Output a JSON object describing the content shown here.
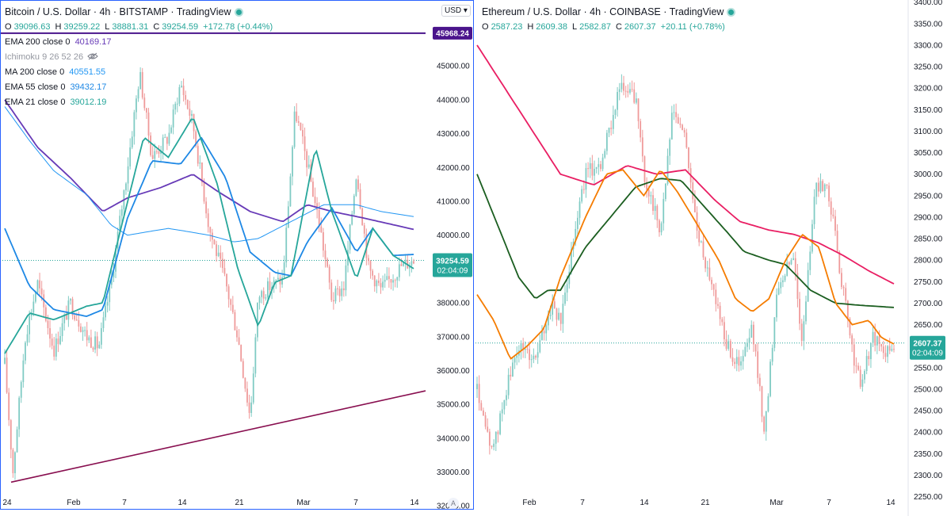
{
  "btc": {
    "title": "Bitcoin / U.S. Dollar · 4h · BITSTAMP · TradingView",
    "ohlc": [
      {
        "k": "O",
        "v": "39096.63"
      },
      {
        "k": "H",
        "v": "39259.22"
      },
      {
        "k": "L",
        "v": "38881.31"
      },
      {
        "k": "C",
        "v": "39254.59"
      },
      {
        "k": "",
        "v": "+172.78 (+0.44%)"
      }
    ],
    "currency": "USD",
    "indicators": [
      {
        "name": "EMA 200 close 0",
        "value": "40169.17",
        "color": "#673ab7"
      },
      {
        "name": "Ichimoku 9 26 52 26",
        "value": "",
        "color": "#9598a1"
      },
      {
        "name": "MA 200 close 0",
        "value": "40551.55",
        "color": "#2196f3"
      },
      {
        "name": "EMA 55 close 0",
        "value": "39432.17",
        "color": "#1e88e5"
      },
      {
        "name": "EMA 21 close 0",
        "value": "39012.19",
        "color": "#26a69a"
      }
    ],
    "price_tag": "39254.59",
    "countdown": "02:04:09",
    "level_tag": "45968.24",
    "axis_mode": "A",
    "chart_data": {
      "type": "candlestick",
      "y_ticks": [
        32000,
        33000,
        34000,
        35000,
        36000,
        37000,
        38000,
        39000,
        40000,
        41000,
        42000,
        43000,
        44000,
        45000
      ],
      "ylim": [
        31700,
        46950
      ],
      "x_ticks": [
        "24",
        "Feb",
        "7",
        "14",
        "21",
        "Mar",
        "7",
        "14"
      ],
      "horizontal_level": 45968.24,
      "last_price": 39254.59,
      "trendline": {
        "from": [
          0,
          32700
        ],
        "to": [
          1,
          35400
        ]
      },
      "price_path": [
        [
          0,
          36200
        ],
        [
          0.02,
          33000
        ],
        [
          0.05,
          37000
        ],
        [
          0.08,
          38600
        ],
        [
          0.12,
          36600
        ],
        [
          0.16,
          38000
        ],
        [
          0.2,
          37000
        ],
        [
          0.23,
          36700
        ],
        [
          0.26,
          38600
        ],
        [
          0.3,
          42000
        ],
        [
          0.33,
          44800
        ],
        [
          0.36,
          42300
        ],
        [
          0.4,
          42900
        ],
        [
          0.43,
          44500
        ],
        [
          0.46,
          43300
        ],
        [
          0.5,
          40200
        ],
        [
          0.54,
          38600
        ],
        [
          0.57,
          37000
        ],
        [
          0.6,
          34600
        ],
        [
          0.62,
          38200
        ],
        [
          0.65,
          38500
        ],
        [
          0.68,
          38700
        ],
        [
          0.71,
          43700
        ],
        [
          0.74,
          42100
        ],
        [
          0.77,
          40300
        ],
        [
          0.8,
          38100
        ],
        [
          0.83,
          38500
        ],
        [
          0.86,
          41900
        ],
        [
          0.89,
          39000
        ],
        [
          0.92,
          38400
        ],
        [
          0.95,
          38800
        ],
        [
          0.97,
          39100
        ],
        [
          1,
          39255
        ]
      ],
      "series": [
        {
          "name": "EMA 200",
          "color": "#673ab7",
          "points": [
            [
              0,
              44000
            ],
            [
              0.08,
              42600
            ],
            [
              0.16,
              41700
            ],
            [
              0.24,
              40700
            ],
            [
              0.3,
              41100
            ],
            [
              0.38,
              41400
            ],
            [
              0.46,
              41800
            ],
            [
              0.52,
              41300
            ],
            [
              0.6,
              40700
            ],
            [
              0.68,
              40400
            ],
            [
              0.74,
              40900
            ],
            [
              0.8,
              40700
            ],
            [
              0.88,
              40500
            ],
            [
              1,
              40170
            ]
          ]
        },
        {
          "name": "MA 200",
          "color": "#2196f3",
          "points": [
            [
              0,
              43800
            ],
            [
              0.06,
              42800
            ],
            [
              0.12,
              41900
            ],
            [
              0.2,
              41200
            ],
            [
              0.26,
              40300
            ],
            [
              0.3,
              40000
            ],
            [
              0.4,
              40200
            ],
            [
              0.5,
              40000
            ],
            [
              0.56,
              39800
            ],
            [
              0.62,
              39900
            ],
            [
              0.7,
              40400
            ],
            [
              0.78,
              40900
            ],
            [
              0.86,
              40900
            ],
            [
              0.92,
              40700
            ],
            [
              1,
              40550
            ]
          ]
        },
        {
          "name": "EMA 55",
          "color": "#1e88e5",
          "points": [
            [
              0,
              40200
            ],
            [
              0.06,
              38500
            ],
            [
              0.12,
              37800
            ],
            [
              0.2,
              37600
            ],
            [
              0.24,
              37800
            ],
            [
              0.3,
              40500
            ],
            [
              0.36,
              42200
            ],
            [
              0.43,
              42100
            ],
            [
              0.48,
              42900
            ],
            [
              0.54,
              41700
            ],
            [
              0.6,
              39500
            ],
            [
              0.66,
              38900
            ],
            [
              0.7,
              38800
            ],
            [
              0.74,
              39800
            ],
            [
              0.8,
              40800
            ],
            [
              0.86,
              39500
            ],
            [
              0.9,
              40200
            ],
            [
              0.95,
              39400
            ],
            [
              1,
              39430
            ]
          ]
        },
        {
          "name": "EMA 21",
          "color": "#26a69a",
          "points": [
            [
              0,
              36500
            ],
            [
              0.06,
              37700
            ],
            [
              0.12,
              37500
            ],
            [
              0.2,
              37900
            ],
            [
              0.24,
              38000
            ],
            [
              0.28,
              40000
            ],
            [
              0.34,
              42900
            ],
            [
              0.4,
              42300
            ],
            [
              0.46,
              43500
            ],
            [
              0.52,
              41500
            ],
            [
              0.57,
              39000
            ],
            [
              0.62,
              37300
            ],
            [
              0.66,
              38600
            ],
            [
              0.7,
              38800
            ],
            [
              0.76,
              42600
            ],
            [
              0.8,
              40700
            ],
            [
              0.86,
              38700
            ],
            [
              0.9,
              40200
            ],
            [
              0.95,
              39400
            ],
            [
              1,
              39010
            ]
          ]
        }
      ]
    }
  },
  "eth": {
    "title": "Ethereum / U.S. Dollar · 4h · COINBASE · TradingView",
    "ohlc": [
      {
        "k": "O",
        "v": "2587.23"
      },
      {
        "k": "H",
        "v": "2609.38"
      },
      {
        "k": "L",
        "v": "2582.87"
      },
      {
        "k": "C",
        "v": "2607.37"
      },
      {
        "k": "",
        "v": "+20.11 (+0.78%)"
      }
    ],
    "price_tag": "2607.37",
    "countdown": "02:04:09",
    "chart_data": {
      "type": "candlestick",
      "y_ticks": [
        2250,
        2300,
        2350,
        2400,
        2450,
        2500,
        2550,
        2600,
        2650,
        2700,
        2750,
        2800,
        2850,
        2900,
        2950,
        3000,
        3050,
        3100,
        3150,
        3200,
        3250,
        3300,
        3350,
        3400
      ],
      "ylim": [
        2205,
        3405
      ],
      "x_ticks": [
        "Feb",
        "7",
        "14",
        "21",
        "Mar",
        "7",
        "14"
      ],
      "last_price": 2607.37,
      "price_path": [
        [
          0,
          2500
        ],
        [
          0.02,
          2400
        ],
        [
          0.04,
          2360
        ],
        [
          0.07,
          2500
        ],
        [
          0.1,
          2600
        ],
        [
          0.14,
          2570
        ],
        [
          0.18,
          2700
        ],
        [
          0.2,
          2650
        ],
        [
          0.23,
          2850
        ],
        [
          0.26,
          3000
        ],
        [
          0.3,
          3030
        ],
        [
          0.34,
          3200
        ],
        [
          0.38,
          3180
        ],
        [
          0.4,
          3000
        ],
        [
          0.44,
          2870
        ],
        [
          0.47,
          3150
        ],
        [
          0.5,
          3080
        ],
        [
          0.53,
          2850
        ],
        [
          0.56,
          2760
        ],
        [
          0.6,
          2600
        ],
        [
          0.63,
          2550
        ],
        [
          0.66,
          2640
        ],
        [
          0.69,
          2400
        ],
        [
          0.72,
          2740
        ],
        [
          0.76,
          2810
        ],
        [
          0.78,
          2600
        ],
        [
          0.81,
          2960
        ],
        [
          0.84,
          2980
        ],
        [
          0.87,
          2780
        ],
        [
          0.9,
          2590
        ],
        [
          0.92,
          2510
        ],
        [
          0.95,
          2620
        ],
        [
          0.98,
          2580
        ],
        [
          1,
          2607
        ]
      ],
      "series": [
        {
          "name": "EMA 200",
          "color": "#e91e63",
          "points": [
            [
              0,
              3300
            ],
            [
              0.1,
              3150
            ],
            [
              0.2,
              3000
            ],
            [
              0.28,
              2975
            ],
            [
              0.36,
              3020
            ],
            [
              0.43,
              3000
            ],
            [
              0.5,
              3010
            ],
            [
              0.57,
              2940
            ],
            [
              0.63,
              2890
            ],
            [
              0.7,
              2870
            ],
            [
              0.76,
              2860
            ],
            [
              0.82,
              2840
            ],
            [
              0.88,
              2810
            ],
            [
              0.94,
              2775
            ],
            [
              1,
              2745
            ]
          ]
        },
        {
          "name": "EMA 55",
          "color": "#1b5e20",
          "points": [
            [
              0,
              3000
            ],
            [
              0.05,
              2880
            ],
            [
              0.1,
              2760
            ],
            [
              0.14,
              2710
            ],
            [
              0.17,
              2730
            ],
            [
              0.2,
              2730
            ],
            [
              0.26,
              2830
            ],
            [
              0.32,
              2900
            ],
            [
              0.38,
              2970
            ],
            [
              0.44,
              2990
            ],
            [
              0.49,
              2985
            ],
            [
              0.54,
              2930
            ],
            [
              0.6,
              2865
            ],
            [
              0.64,
              2820
            ],
            [
              0.7,
              2800
            ],
            [
              0.74,
              2790
            ],
            [
              0.8,
              2730
            ],
            [
              0.86,
              2700
            ],
            [
              0.92,
              2695
            ],
            [
              1,
              2690
            ]
          ]
        },
        {
          "name": "EMA 21",
          "color": "#f57c00",
          "points": [
            [
              0,
              2720
            ],
            [
              0.04,
              2660
            ],
            [
              0.08,
              2570
            ],
            [
              0.12,
              2600
            ],
            [
              0.16,
              2640
            ],
            [
              0.2,
              2760
            ],
            [
              0.26,
              2900
            ],
            [
              0.31,
              3000
            ],
            [
              0.35,
              3010
            ],
            [
              0.4,
              2950
            ],
            [
              0.44,
              3010
            ],
            [
              0.48,
              2960
            ],
            [
              0.53,
              2880
            ],
            [
              0.58,
              2800
            ],
            [
              0.62,
              2710
            ],
            [
              0.66,
              2680
            ],
            [
              0.7,
              2710
            ],
            [
              0.74,
              2800
            ],
            [
              0.78,
              2860
            ],
            [
              0.82,
              2830
            ],
            [
              0.86,
              2700
            ],
            [
              0.9,
              2650
            ],
            [
              0.94,
              2660
            ],
            [
              0.97,
              2620
            ],
            [
              1,
              2605
            ]
          ]
        }
      ]
    }
  }
}
